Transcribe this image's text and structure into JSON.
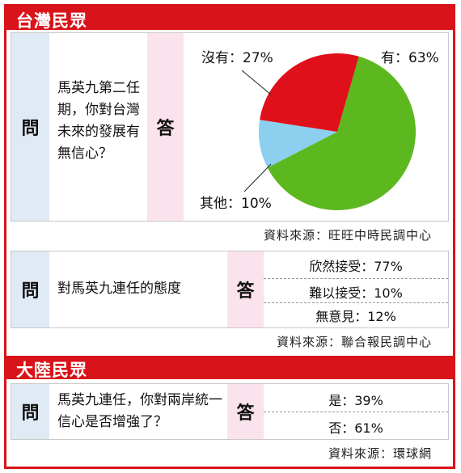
{
  "sections": {
    "taiwan": "台灣民眾",
    "mainland": "大陸民眾"
  },
  "q_label": "問",
  "a_label": "答",
  "q1": {
    "question": "馬英九第二任期，你對台灣未來的發展有無信心？",
    "source": "資料來源：旺旺中時民調中心"
  },
  "q2": {
    "question": "對馬英九連任的態度",
    "answers": [
      "欣然接受：77%",
      "難以接受：10%",
      "無意見：12%"
    ],
    "source": "資料來源：聯合報民調中心"
  },
  "q3": {
    "question": "馬英九連任，你對兩岸統一信心是否增強了？",
    "answers": [
      "是：39%",
      "否：61%"
    ],
    "source": "資料來源：環球網"
  },
  "chart_data": {
    "type": "pie",
    "slices": [
      {
        "label": "有：63%",
        "value": 63,
        "color": "#5cb81e"
      },
      {
        "label": "其他：10%",
        "value": 10,
        "color": "#8ccfee"
      },
      {
        "label": "沒有：27%",
        "value": 27,
        "color": "#e0101b"
      }
    ],
    "title": ""
  }
}
